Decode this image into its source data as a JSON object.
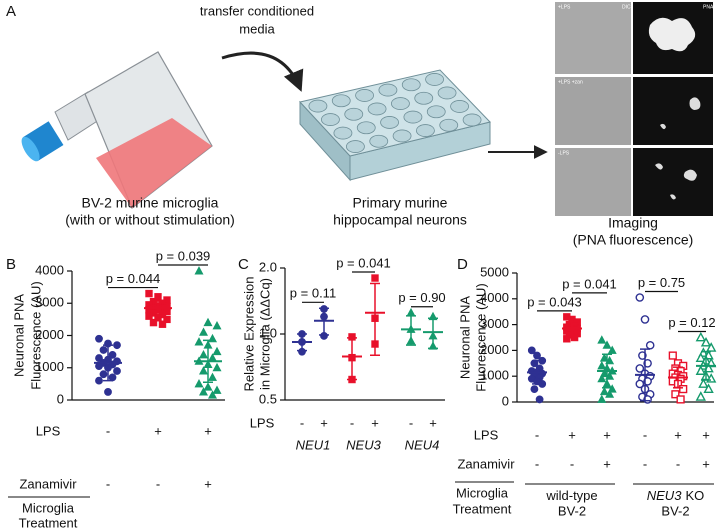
{
  "panel_a": {
    "label": "A",
    "arrow_text": [
      "transfer conditioned",
      "media"
    ],
    "captions": [
      [
        "BV-2 murine microglia",
        "(with or without stimulation)"
      ],
      [
        "Primary murine",
        "hippocampal neurons"
      ],
      [
        "Imaging",
        "(PNA fluorescence)"
      ]
    ],
    "image_labels": {
      "top": "+LPS",
      "dic": "DIC",
      "pna": "PNA",
      "middle": "+LPS +zan",
      "bottom": "-LPS"
    }
  },
  "chart_data": [
    {
      "type": "strip",
      "label": "B",
      "ylabel": [
        "Neuronal PNA",
        "Fluorescence (AU)"
      ],
      "ylim": [
        0,
        4000
      ],
      "yticks": [
        0,
        1000,
        2000,
        3000,
        4000
      ],
      "rows": [
        {
          "name": "LPS",
          "signs": [
            "-",
            "+",
            "+"
          ]
        },
        {
          "name": "Zanamivir",
          "signs": [
            "-",
            "-",
            "+"
          ]
        }
      ],
      "footer": [
        "Microglia",
        "Treatment"
      ],
      "series": [
        {
          "color": "#2e3192",
          "marker": "circle",
          "filled": true,
          "mean": 1150,
          "sd": 550,
          "values": [
            1900,
            1750,
            1700,
            1550,
            1400,
            1300,
            1250,
            1200,
            1150,
            1100,
            1050,
            1000,
            900,
            800,
            700,
            600,
            250
          ]
        },
        {
          "color": "#e8102a",
          "marker": "square",
          "filled": true,
          "mean": 2850,
          "sd": 230,
          "values": [
            3300,
            3200,
            3100,
            3050,
            3000,
            2950,
            2900,
            2900,
            2850,
            2850,
            2800,
            2800,
            2750,
            2700,
            2650,
            2600,
            2550,
            2500,
            2400,
            2350
          ]
        },
        {
          "color": "#159a6c",
          "marker": "triangle",
          "filled": true,
          "mean": 1200,
          "sd": 650,
          "values": [
            4000,
            2400,
            2300,
            2100,
            1900,
            1800,
            1700,
            1500,
            1400,
            1300,
            1200,
            1100,
            1000,
            900,
            700,
            500,
            400,
            300,
            250,
            150
          ]
        }
      ],
      "comparisons": [
        {
          "groups": [
            0,
            1
          ],
          "label": "p = 0.044"
        },
        {
          "groups": [
            1,
            2
          ],
          "label": "p = 0.039"
        }
      ]
    },
    {
      "type": "strip",
      "label": "C",
      "ylabel": [
        "Relative Expression",
        "in Microglia (ΔΔCq)"
      ],
      "yscale": "log",
      "ylim": [
        0.5,
        2
      ],
      "yticks": [
        0.5,
        {
          "value": 1,
          "label": "1.0"
        },
        {
          "value": 2,
          "label": "2.0"
        }
      ],
      "rows": [
        {
          "name": "LPS",
          "signs": [
            "-",
            "+",
            "-",
            "+",
            "-",
            "+"
          ]
        }
      ],
      "categories": [
        "NEU1",
        "NEU3",
        "NEU4"
      ],
      "series": [
        {
          "color": "#2e3192",
          "marker": "circle",
          "filled": true,
          "mean": 0.92,
          "sd": 0.08,
          "values": [
            1.0,
            0.92,
            0.83
          ]
        },
        {
          "color": "#2e3192",
          "marker": "circle",
          "filled": true,
          "mean": 1.15,
          "sd": 0.16,
          "values": [
            1.3,
            1.2,
            0.98
          ]
        },
        {
          "color": "#e8102a",
          "marker": "square",
          "filled": true,
          "mean": 0.79,
          "sd": 0.17,
          "values": [
            0.97,
            0.78,
            0.62
          ]
        },
        {
          "color": "#e8102a",
          "marker": "square",
          "filled": true,
          "mean": 1.25,
          "sd": 0.45,
          "values": [
            1.8,
            1.18,
            0.9
          ]
        },
        {
          "color": "#159a6c",
          "marker": "triangle",
          "filled": true,
          "mean": 1.05,
          "sd": 0.16,
          "values": [
            1.25,
            1.05,
            0.93
          ]
        },
        {
          "color": "#159a6c",
          "marker": "triangle",
          "filled": true,
          "mean": 1.02,
          "sd": 0.16,
          "values": [
            1.2,
            0.98,
            0.88
          ]
        }
      ],
      "comparisons": [
        {
          "groups": [
            0,
            1
          ],
          "label": "p = 0.11"
        },
        {
          "groups": [
            2,
            3
          ],
          "label": "p = 0.041"
        },
        {
          "groups": [
            4,
            5
          ],
          "label": "p = 0.90"
        }
      ]
    },
    {
      "type": "strip",
      "label": "D",
      "ylabel": [
        "Neuronal PNA",
        "Fluorescence (AU)"
      ],
      "ylim": [
        0,
        5000
      ],
      "yticks": [
        0,
        1000,
        2000,
        3000,
        4000,
        5000
      ],
      "rows": [
        {
          "name": "LPS",
          "signs": [
            "-",
            "+",
            "+",
            "-",
            "+",
            "+"
          ]
        },
        {
          "name": "Zanamivir",
          "signs": [
            "-",
            "-",
            "+",
            "-",
            "-",
            "+"
          ]
        }
      ],
      "footer": [
        "Microglia",
        "Treatment"
      ],
      "group_labels": [
        {
          "lines": [
            "wild-type",
            "BV-2"
          ]
        },
        {
          "gene": "NEU3",
          "lines": [
            "KO",
            "BV-2"
          ]
        }
      ],
      "series": [
        {
          "color": "#2e3192",
          "marker": "circle",
          "filled": true,
          "mean": 1150,
          "sd": 450,
          "values": [
            2000,
            1800,
            1600,
            1500,
            1300,
            1200,
            1150,
            1100,
            1000,
            950,
            900,
            800,
            700,
            500,
            100
          ]
        },
        {
          "color": "#e8102a",
          "marker": "square",
          "filled": true,
          "mean": 2850,
          "sd": 250,
          "values": [
            3300,
            3200,
            3100,
            3000,
            2950,
            2900,
            2850,
            2850,
            2800,
            2800,
            2750,
            2700,
            2650,
            2600,
            2500,
            2450
          ]
        },
        {
          "color": "#159a6c",
          "marker": "triangle",
          "filled": true,
          "mean": 1200,
          "sd": 650,
          "values": [
            2400,
            2200,
            2000,
            1700,
            1600,
            1400,
            1300,
            1200,
            1100,
            1000,
            900,
            700,
            500,
            400,
            300,
            100
          ]
        },
        {
          "color": "#2e3192",
          "marker": "circle",
          "filled": false,
          "mean": 1050,
          "sd": 1000,
          "values": [
            4050,
            3200,
            2200,
            1800,
            1500,
            1300,
            1100,
            1000,
            900,
            800,
            700,
            500,
            300,
            200,
            100
          ]
        },
        {
          "color": "#e8102a",
          "marker": "square",
          "filled": false,
          "mean": 950,
          "sd": 400,
          "values": [
            1800,
            1500,
            1400,
            1300,
            1200,
            1100,
            1050,
            1000,
            950,
            900,
            800,
            700,
            500,
            300,
            100
          ]
        },
        {
          "color": "#159a6c",
          "marker": "triangle",
          "filled": false,
          "mean": 1400,
          "sd": 550,
          "values": [
            2500,
            2300,
            2100,
            1900,
            1800,
            1700,
            1600,
            1500,
            1400,
            1300,
            1200,
            1000,
            900,
            700,
            500,
            200
          ]
        }
      ],
      "comparisons": [
        {
          "groups": [
            0,
            1
          ],
          "label": "p = 0.043"
        },
        {
          "groups": [
            1,
            2
          ],
          "label": "p = 0.041"
        },
        {
          "groups": [
            3,
            4
          ],
          "label": "p = 0.75"
        },
        {
          "groups": [
            4,
            5
          ],
          "label": "p = 0.12"
        }
      ]
    }
  ]
}
